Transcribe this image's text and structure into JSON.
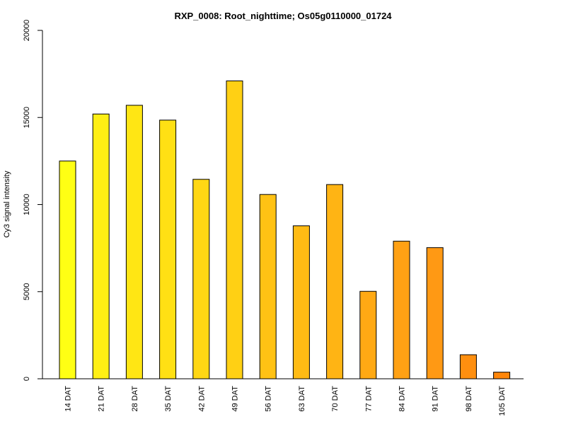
{
  "chart_data": {
    "type": "bar",
    "title": "RXP_0008: Root_nighttime; Os05g0110000_01724",
    "xlabel": "",
    "ylabel": "Cy3 signal intensity",
    "ylim": [
      0,
      20000
    ],
    "yticks": [
      0,
      5000,
      10000,
      15000,
      20000
    ],
    "grid": false,
    "categories": [
      "14 DAT",
      "21 DAT",
      "28 DAT",
      "35 DAT",
      "42 DAT",
      "49 DAT",
      "56 DAT",
      "63 DAT",
      "70 DAT",
      "77 DAT",
      "84 DAT",
      "91 DAT",
      "98 DAT",
      "105 DAT"
    ],
    "values": [
      12500,
      15200,
      15700,
      14850,
      11450,
      17100,
      10580,
      8780,
      11150,
      5020,
      7900,
      7530,
      1380,
      380
    ],
    "colors": [
      "#FFFF14",
      "#FFEF14",
      "#FFE614",
      "#FFE014",
      "#FFD714",
      "#FFD014",
      "#FFC214",
      "#FFBB14",
      "#FFB414",
      "#FFA914",
      "#FFA114",
      "#FF9914",
      "#FF8F0F",
      "#FF860A"
    ]
  }
}
